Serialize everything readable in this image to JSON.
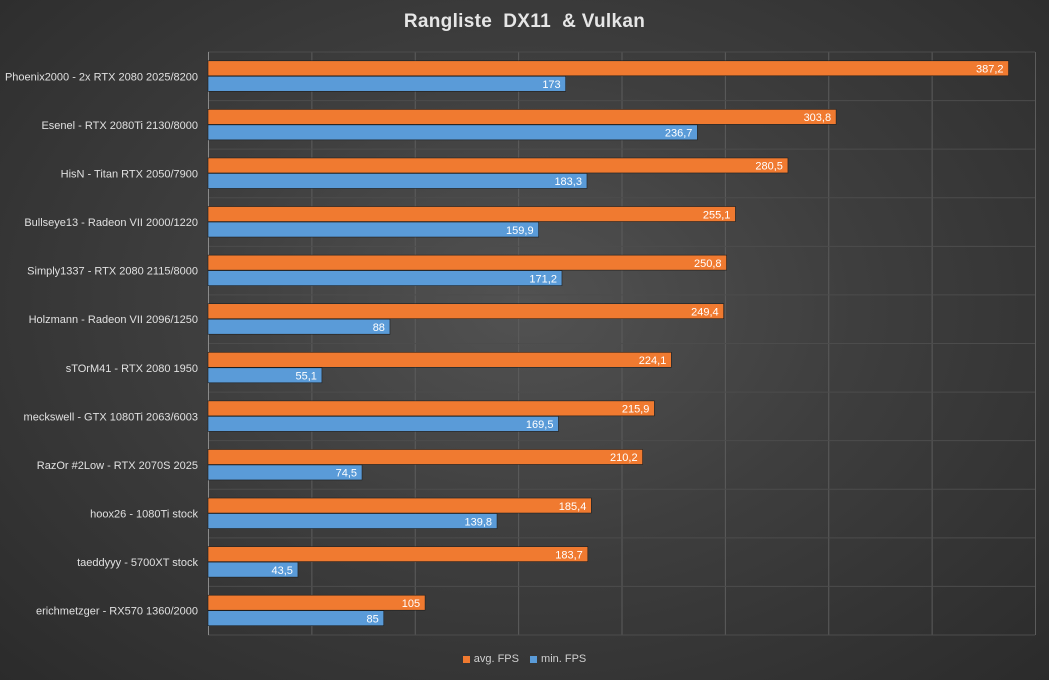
{
  "chart_data": {
    "type": "bar",
    "orientation": "horizontal",
    "title": "Rangliste  DX11  & Vulkan",
    "xlabel": "",
    "ylabel": "",
    "xlim": [
      0,
      400
    ],
    "grid": true,
    "legend_position": "bottom",
    "categories": [
      "Phoenix2000 - 2x RTX 2080 2025/8200",
      "Esenel - RTX 2080Ti 2130/8000",
      "HisN - Titan RTX 2050/7900",
      "Bullseye13 - Radeon VII 2000/1220",
      "Simply1337 - RTX 2080 2115/8000",
      "Holzmann - Radeon VII 2096/1250",
      "sTOrM41 - RTX 2080 1950",
      "meckswell - GTX 1080Ti 2063/6003",
      "RazOr #2Low - RTX 2070S 2025",
      "hoox26 - 1080Ti stock",
      "taeddyyy - 5700XT stock",
      "erichmetzger - RX570 1360/2000"
    ],
    "series": [
      {
        "name": "avg. FPS",
        "color": "#f07a30",
        "values": [
          387.2,
          303.8,
          280.5,
          255.1,
          250.8,
          249.4,
          224.1,
          215.9,
          210.2,
          185.4,
          183.7,
          105
        ],
        "labels": [
          "387,2",
          "303,8",
          "280,5",
          "255,1",
          "250,8",
          "249,4",
          "224,1",
          "215,9",
          "210,2",
          "185,4",
          "183,7",
          "105"
        ]
      },
      {
        "name": "min. FPS",
        "color": "#5a9bd8",
        "values": [
          173,
          236.7,
          183.3,
          159.9,
          171.2,
          88,
          55.1,
          169.5,
          74.5,
          139.8,
          43.5,
          85
        ],
        "labels": [
          "173",
          "236,7",
          "183,3",
          "159,9",
          "171,2",
          "88",
          "55,1",
          "169,5",
          "74,5",
          "139,8",
          "43,5",
          "85"
        ]
      }
    ]
  }
}
